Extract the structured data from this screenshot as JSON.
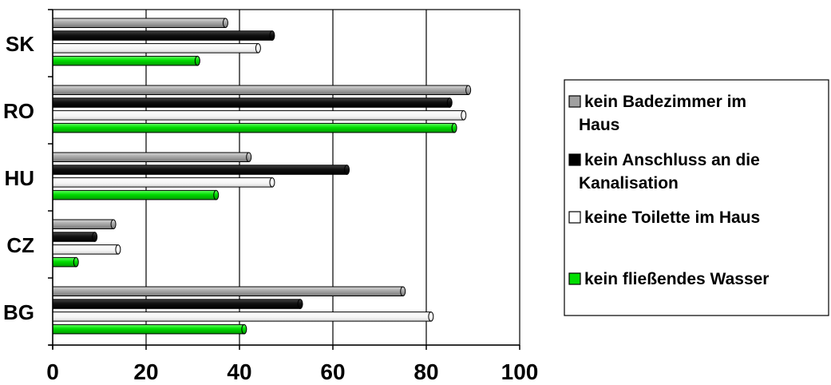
{
  "chart_data": {
    "type": "bar",
    "orientation": "horizontal",
    "categories": [
      "SK",
      "RO",
      "HU",
      "CZ",
      "BG"
    ],
    "series": [
      {
        "name": "kein Badezimmer im Haus",
        "legend_lines": [
          "kein Badezimmer im",
          "Haus"
        ],
        "color": "#a0a0a0",
        "values": [
          37,
          89,
          42,
          13,
          75
        ]
      },
      {
        "name": "kein Anschluss an die Kanalisation",
        "legend_lines": [
          "kein Anschluss an die",
          "Kanalisation"
        ],
        "color": "#000000",
        "values": [
          47,
          85,
          63,
          9,
          53
        ]
      },
      {
        "name": "keine Toilette im Haus",
        "legend_lines": [
          "keine Toilette im Haus"
        ],
        "color": "#ffffff",
        "values": [
          44,
          88,
          47,
          14,
          81
        ]
      },
      {
        "name": "kein fließendes Wasser",
        "legend_lines": [
          "kein fließendes Wasser"
        ],
        "color": "#00dd00",
        "values": [
          31,
          86,
          35,
          5,
          41
        ]
      }
    ],
    "xlim": [
      0,
      100
    ],
    "xticks": [
      0,
      20,
      40,
      60,
      80,
      100
    ],
    "grid": "vertical",
    "legend": "right",
    "title": "",
    "xlabel": "",
    "ylabel": ""
  }
}
